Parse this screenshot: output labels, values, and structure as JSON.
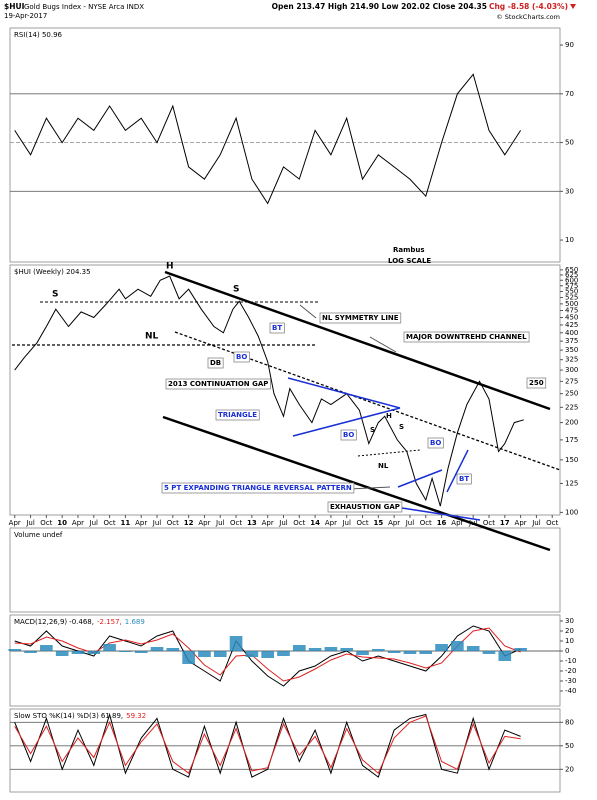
{
  "header": {
    "symbol": "$HUI",
    "name": "Gold Bugs Index - NYSE Arca INDX",
    "date": "19-Apr-2017",
    "quote": "Open 213.47 High 214.90 Low 202.02 Close 204.35",
    "change": "Chg -8.58 (-4.03%)",
    "credit": "© StockCharts.com"
  },
  "annotations": [
    "H",
    "S",
    "S",
    "NL",
    "DB",
    "BO",
    "BT",
    "NL SYMMETRY LINE",
    "MAJOR DOWNTREHD CHANNEL",
    "2013 CONTINUATION GAP",
    "TRIANGLE",
    "BO",
    "S",
    "H",
    "S",
    "NL",
    "BO",
    "BT",
    "250",
    "5 PT EXPANDING TRIANGLE REVERSAL PATTERN",
    "EXHAUSTION GAP",
    "Rambus",
    "LOG SCALE"
  ],
  "chart_data": [
    {
      "type": "line",
      "title": "RSI(14) 50.96",
      "x": [
        2009.25,
        2009.5,
        2009.75,
        2010,
        2010.25,
        2010.5,
        2010.75,
        2011,
        2011.25,
        2011.5,
        2011.75,
        2012,
        2012.25,
        2012.5,
        2012.75,
        2013,
        2013.25,
        2013.5,
        2013.75,
        2014,
        2014.25,
        2014.5,
        2014.75,
        2015,
        2015.25,
        2015.5,
        2015.75,
        2016,
        2016.25,
        2016.5,
        2016.75,
        2017,
        2017.25
      ],
      "series": [
        {
          "color": "#000000",
          "values": [
            55,
            45,
            60,
            50,
            60,
            55,
            65,
            55,
            60,
            50,
            65,
            40,
            35,
            45,
            60,
            35,
            25,
            40,
            35,
            55,
            45,
            60,
            35,
            45,
            40,
            35,
            28,
            50,
            70,
            78,
            55,
            45,
            55
          ]
        }
      ],
      "xlim": [
        2009.175,
        2017.873
      ],
      "ylim": [
        1,
        97
      ],
      "yticks": [
        90,
        70,
        50,
        30,
        10
      ],
      "levels": [
        70,
        50,
        30
      ],
      "grid": false
    },
    {
      "type": "line",
      "title": "$HUI (Weekly) 204.35",
      "log_scale": true,
      "x": [
        2009.25,
        2009.4,
        2009.6,
        2009.75,
        2009.9,
        2010.1,
        2010.3,
        2010.5,
        2010.7,
        2010.9,
        2011.0,
        2011.2,
        2011.4,
        2011.55,
        2011.7,
        2011.85,
        2012.0,
        2012.2,
        2012.4,
        2012.55,
        2012.7,
        2012.8,
        2012.95,
        2013.1,
        2013.25,
        2013.35,
        2013.5,
        2013.6,
        2013.75,
        2013.95,
        2014.1,
        2014.25,
        2014.5,
        2014.7,
        2014.85,
        2015.0,
        2015.1,
        2015.3,
        2015.45,
        2015.6,
        2015.75,
        2015.85,
        2015.98,
        2016.1,
        2016.25,
        2016.4,
        2016.6,
        2016.75,
        2016.9,
        2017.0,
        2017.15,
        2017.3
      ],
      "series": [
        {
          "color": "#000000",
          "values": [
            300,
            330,
            370,
            420,
            480,
            420,
            470,
            450,
            500,
            560,
            520,
            560,
            530,
            600,
            620,
            520,
            560,
            480,
            420,
            400,
            480,
            510,
            450,
            390,
            320,
            250,
            210,
            260,
            230,
            200,
            240,
            230,
            250,
            220,
            170,
            200,
            210,
            175,
            160,
            125,
            110,
            130,
            105,
            140,
            185,
            230,
            275,
            240,
            160,
            170,
            200,
            204.35
          ]
        }
      ],
      "xlim": [
        2009.175,
        2017.873
      ],
      "ylim": [
        98,
        675
      ],
      "yticks": [
        650,
        625,
        600,
        575,
        550,
        525,
        500,
        475,
        450,
        425,
        400,
        375,
        350,
        325,
        300,
        275,
        250,
        225,
        200,
        175,
        150,
        125,
        100
      ],
      "xticks": [
        {
          "value": 2009.25,
          "label": "Apr"
        },
        {
          "value": 2009.5,
          "label": "Jul"
        },
        {
          "value": 2009.75,
          "label": "Oct"
        },
        {
          "value": 2010,
          "label": "10"
        },
        {
          "value": 2010.25,
          "label": "Apr"
        },
        {
          "value": 2010.5,
          "label": "Jul"
        },
        {
          "value": 2010.75,
          "label": "Oct"
        },
        {
          "value": 2011,
          "label": "11"
        },
        {
          "value": 2011.25,
          "label": "Apr"
        },
        {
          "value": 2011.5,
          "label": "Jul"
        },
        {
          "value": 2011.75,
          "label": "Oct"
        },
        {
          "value": 2012,
          "label": "12"
        },
        {
          "value": 2012.25,
          "label": "Apr"
        },
        {
          "value": 2012.5,
          "label": "Jul"
        },
        {
          "value": 2012.75,
          "label": "Oct"
        },
        {
          "value": 2013,
          "label": "13"
        },
        {
          "value": 2013.25,
          "label": "Apr"
        },
        {
          "value": 2013.5,
          "label": "Jul"
        },
        {
          "value": 2013.75,
          "label": "Oct"
        },
        {
          "value": 2014,
          "label": "14"
        },
        {
          "value": 2014.25,
          "label": "Apr"
        },
        {
          "value": 2014.5,
          "label": "Jul"
        },
        {
          "value": 2014.75,
          "label": "Oct"
        },
        {
          "value": 2015,
          "label": "15"
        },
        {
          "value": 2015.25,
          "label": "Apr"
        },
        {
          "value": 2015.5,
          "label": "Jul"
        },
        {
          "value": 2015.75,
          "label": "Oct"
        },
        {
          "value": 2016,
          "label": "16"
        },
        {
          "value": 2016.25,
          "label": "Apr"
        },
        {
          "value": 2016.5,
          "label": "Jul"
        },
        {
          "value": 2016.75,
          "label": "Oct"
        },
        {
          "value": 2017,
          "label": "17"
        },
        {
          "value": 2017.25,
          "label": "Apr"
        },
        {
          "value": 2017.5,
          "label": "Jul"
        },
        {
          "value": 2017.75,
          "label": "Oct"
        }
      ],
      "grid": false
    },
    {
      "type": "volume",
      "title": "Volume undef"
    },
    {
      "type": "line",
      "title": "MACD(12,26,9)",
      "x": [
        2009.25,
        2009.5,
        2009.75,
        2010,
        2010.25,
        2010.5,
        2010.75,
        2011,
        2011.25,
        2011.5,
        2011.75,
        2012,
        2012.25,
        2012.5,
        2012.75,
        2013,
        2013.25,
        2013.5,
        2013.75,
        2014,
        2014.25,
        2014.5,
        2014.75,
        2015,
        2015.25,
        2015.5,
        2015.75,
        2016,
        2016.25,
        2016.5,
        2016.75,
        2017,
        2017.25
      ],
      "series": [
        {
          "name": "-0.468,",
          "color": "#000000",
          "values": [
            10,
            5,
            20,
            5,
            0,
            -5,
            15,
            10,
            5,
            15,
            20,
            -10,
            -20,
            -30,
            10,
            -10,
            -25,
            -35,
            -20,
            -15,
            -5,
            0,
            -10,
            -5,
            -10,
            -15,
            -20,
            -5,
            15,
            25,
            20,
            -5,
            2
          ]
        },
        {
          "name": "-2.157,",
          "color": "#e02020",
          "values": [
            8,
            7,
            14,
            10,
            3,
            -2,
            8,
            11,
            7,
            11,
            17,
            3,
            -14,
            -24,
            -5,
            -4,
            -18,
            -30,
            -26,
            -18,
            -9,
            -3,
            -6,
            -7,
            -8,
            -12,
            -17,
            -12,
            5,
            20,
            23,
            5,
            -1
          ]
        },
        {
          "name": "1.689",
          "color": "#2b8cbe",
          "type": "bar",
          "values": [
            2,
            -2,
            6,
            -5,
            -3,
            -3,
            7,
            -1,
            -2,
            4,
            3,
            -13,
            -6,
            -6,
            15,
            -6,
            -7,
            -5,
            6,
            3,
            4,
            3,
            -4,
            2,
            -2,
            -3,
            -3,
            7,
            10,
            5,
            -3,
            -10,
            3
          ]
        }
      ],
      "xlim": [
        2009.175,
        2017.873
      ],
      "ylim": [
        -55,
        36
      ],
      "yticks": [
        30,
        20,
        10,
        0,
        -10,
        -20,
        -30,
        -40
      ],
      "levels": [
        0
      ],
      "grid": false
    },
    {
      "type": "line",
      "title": "Slow STO %K(14) %D(3)",
      "x": [
        2009.25,
        2009.5,
        2009.75,
        2010,
        2010.25,
        2010.5,
        2010.75,
        2011,
        2011.25,
        2011.5,
        2011.75,
        2012,
        2012.25,
        2012.5,
        2012.75,
        2013,
        2013.25,
        2013.5,
        2013.75,
        2014,
        2014.25,
        2014.5,
        2014.75,
        2015,
        2015.25,
        2015.5,
        2015.75,
        2016,
        2016.25,
        2016.5,
        2016.75,
        2017,
        2017.25
      ],
      "series": [
        {
          "name": "61.89,",
          "color": "#000000",
          "values": [
            80,
            30,
            85,
            20,
            70,
            25,
            90,
            15,
            60,
            85,
            20,
            10,
            75,
            15,
            80,
            10,
            20,
            85,
            30,
            70,
            15,
            80,
            25,
            10,
            70,
            85,
            90,
            20,
            15,
            85,
            20,
            70,
            62
          ]
        },
        {
          "name": "59.32",
          "color": "#e02020",
          "values": [
            75,
            40,
            75,
            30,
            60,
            35,
            80,
            25,
            55,
            78,
            30,
            15,
            65,
            25,
            72,
            18,
            22,
            78,
            38,
            62,
            22,
            72,
            32,
            15,
            60,
            80,
            88,
            30,
            20,
            78,
            28,
            62,
            59
          ]
        }
      ],
      "xlim": [
        2009.175,
        2017.873
      ],
      "ylim": [
        -9,
        97
      ],
      "yticks": [
        80,
        50,
        20
      ],
      "levels": [
        80,
        50,
        20
      ],
      "grid": false
    }
  ]
}
